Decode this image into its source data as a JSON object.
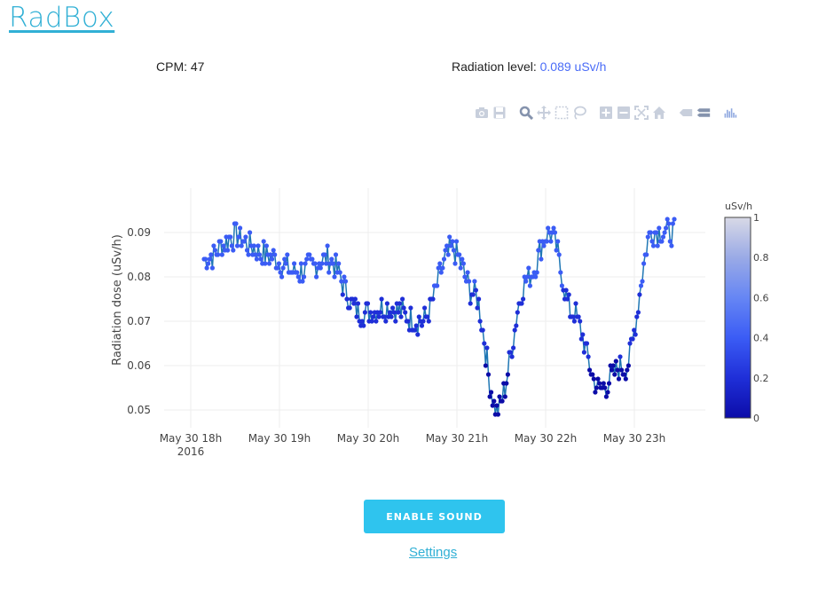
{
  "header": {
    "logo": "RadBox"
  },
  "stats": {
    "cpm_label": "CPM:",
    "cpm_value": "47",
    "radiation_label": "Radiation level:",
    "radiation_value": "0.089 uSv/h",
    "value_color": "#4a6cf7"
  },
  "modebar": {
    "icons": [
      "camera-icon",
      "save-icon",
      "zoom-icon",
      "pan-icon",
      "box-select-icon",
      "lasso-icon",
      "zoom-in-icon",
      "zoom-out-icon",
      "autoscale-icon",
      "home-icon",
      "hover-closest-icon",
      "hover-compare-icon",
      "plotly-logo-icon"
    ]
  },
  "chart_data": {
    "type": "scatter",
    "mode": "lines+markers",
    "ylabel": "Radiation dose (uSv/h)",
    "x_tick_labels": [
      "May 30 18h",
      "May 30 19h",
      "May 30 20h",
      "May 30 21h",
      "May 30 22h",
      "May 30 23h"
    ],
    "x_tick_sublabel": "2016",
    "x_range_hours": [
      17.7,
      23.8
    ],
    "y_ticks": [
      0.05,
      0.06,
      0.07,
      0.08,
      0.09
    ],
    "ylim": [
      0.046,
      0.1
    ],
    "grid": true,
    "colorbar": {
      "title": "uSv/h",
      "ticks": [
        "0",
        "0.2",
        "0.4",
        "0.6",
        "0.8",
        "1"
      ],
      "colors": [
        "#0c0ca8",
        "#1f2fd8",
        "#3b5cf5",
        "#6686f4",
        "#9aaae6",
        "#d8d9e6"
      ]
    },
    "x_hours": [
      18.15,
      18.5,
      18.85,
      19.2,
      19.55,
      19.9,
      20.25,
      20.6,
      20.95,
      21.2,
      21.45,
      21.8,
      22.05,
      22.3,
      22.6,
      22.9,
      23.2,
      23.45
    ],
    "values": [
      0.084,
      0.089,
      0.085,
      0.081,
      0.084,
      0.072,
      0.073,
      0.07,
      0.086,
      0.076,
      0.05,
      0.08,
      0.09,
      0.072,
      0.055,
      0.06,
      0.09,
      0.09
    ],
    "line_color": "#1f77b4"
  },
  "actions": {
    "enable_sound": "ENABLE SOUND",
    "settings": "Settings"
  }
}
